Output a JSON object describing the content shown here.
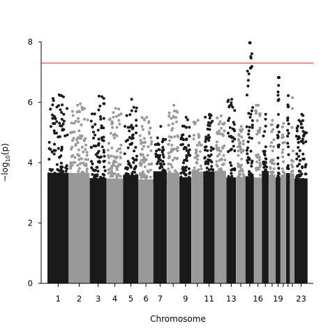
{
  "chart_data": {
    "type": "scatter",
    "subtype": "manhattan",
    "title": "",
    "xlabel": "Chromosome",
    "ylabel_main": "−log",
    "ylabel_sub": "10",
    "ylabel_tail": "(p)",
    "ylim": [
      0,
      8
    ],
    "yticks": [
      0,
      2,
      4,
      6,
      8
    ],
    "threshold": 7.3,
    "colors": {
      "dark": "#1a1a1a",
      "light": "#999999",
      "threshold": "#d62728",
      "axis": "#000000"
    },
    "chromosomes": [
      {
        "name": "1",
        "label": "1",
        "relative_length": 249,
        "color": "dark",
        "top_y": 6.25
      },
      {
        "name": "2",
        "label": "2",
        "relative_length": 243,
        "color": "light",
        "top_y": 5.95
      },
      {
        "name": "3",
        "label": "3",
        "relative_length": 198,
        "color": "dark",
        "top_y": 6.2
      },
      {
        "name": "4",
        "label": "4",
        "relative_length": 191,
        "color": "light",
        "top_y": 5.8
      },
      {
        "name": "5",
        "label": "5",
        "relative_length": 181,
        "color": "dark",
        "top_y": 6.1
      },
      {
        "name": "6",
        "label": "6",
        "relative_length": 171,
        "color": "light",
        "top_y": 5.5
      },
      {
        "name": "7",
        "label": "7",
        "relative_length": 159,
        "color": "dark",
        "top_y": 5.2
      },
      {
        "name": "8",
        "label": "",
        "relative_length": 146,
        "color": "light",
        "top_y": 5.9
      },
      {
        "name": "9",
        "label": "9",
        "relative_length": 141,
        "color": "dark",
        "top_y": 5.5
      },
      {
        "name": "10",
        "label": "",
        "relative_length": 136,
        "color": "light",
        "top_y": 5.4
      },
      {
        "name": "11",
        "label": "11",
        "relative_length": 135,
        "color": "dark",
        "top_y": 5.6
      },
      {
        "name": "12",
        "label": "",
        "relative_length": 134,
        "color": "light",
        "top_y": 5.55
      },
      {
        "name": "13",
        "label": "13",
        "relative_length": 115,
        "color": "dark",
        "top_y": 6.1
      },
      {
        "name": "14",
        "label": "",
        "relative_length": 107,
        "color": "light",
        "top_y": 5.2
      },
      {
        "name": "15",
        "label": "",
        "relative_length": 102,
        "color": "dark",
        "top_y": 7.97
      },
      {
        "name": "16",
        "label": "16",
        "relative_length": 90,
        "color": "light",
        "top_y": 5.9
      },
      {
        "name": "17",
        "label": "",
        "relative_length": 81,
        "color": "dark",
        "top_y": 5.6
      },
      {
        "name": "18",
        "label": "",
        "relative_length": 78,
        "color": "light",
        "top_y": 5.4
      },
      {
        "name": "19",
        "label": "19",
        "relative_length": 59,
        "color": "dark",
        "top_y": 6.82
      },
      {
        "name": "20",
        "label": "",
        "relative_length": 63,
        "color": "light",
        "top_y": 5.3
      },
      {
        "name": "21",
        "label": "",
        "relative_length": 48,
        "color": "dark",
        "top_y": 6.22
      },
      {
        "name": "22",
        "label": "",
        "relative_length": 51,
        "color": "light",
        "top_y": 6.15
      },
      {
        "name": "23",
        "label": "23",
        "relative_length": 155,
        "color": "dark",
        "top_y": 5.6
      }
    ],
    "top_hits": [
      {
        "chromosome": "15",
        "y": 7.97
      },
      {
        "chromosome": "15",
        "y": 7.13
      },
      {
        "chromosome": "19",
        "y": 6.82
      }
    ]
  }
}
